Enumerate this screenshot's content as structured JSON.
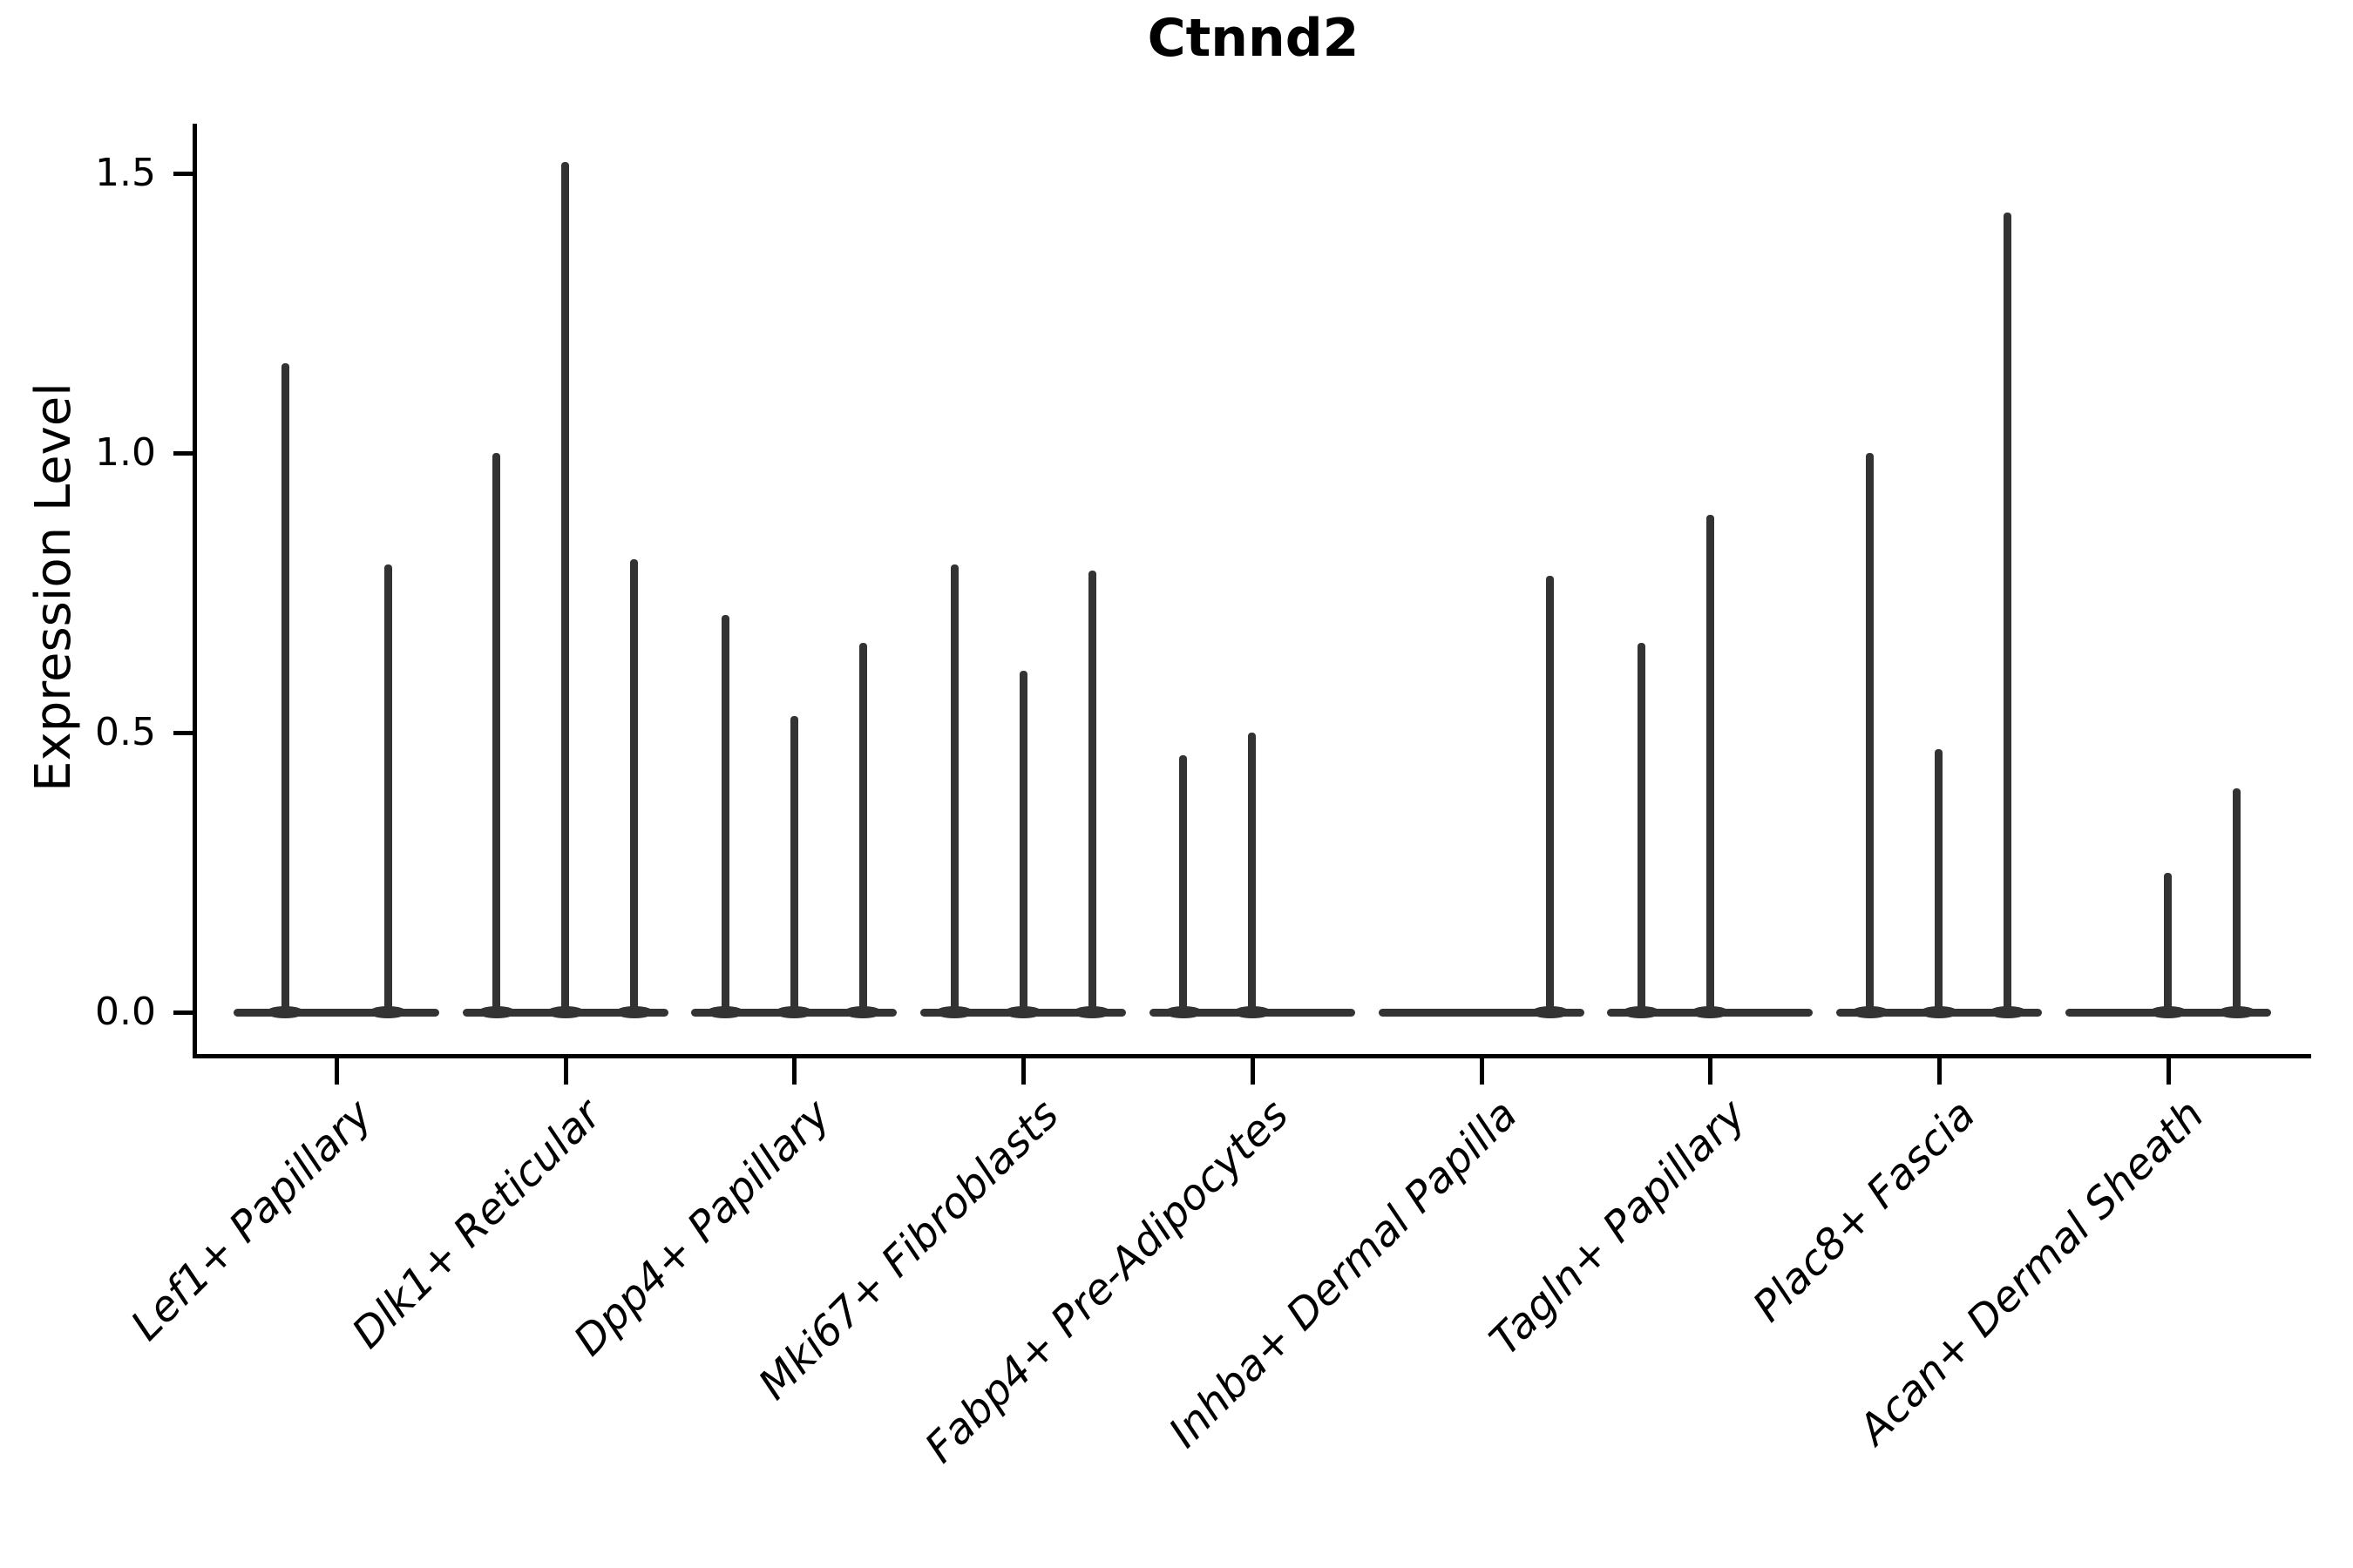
{
  "title": "Ctnnd2",
  "ylabel": "Expression Level",
  "chart_data": {
    "type": "violin",
    "title": "Ctnnd2",
    "xlabel": "",
    "ylabel": "Expression Level",
    "ylim": [
      -0.07,
      1.59
    ],
    "yticks": [
      0.0,
      0.5,
      1.0,
      1.5
    ],
    "ytick_labels": [
      "0.0",
      "0.5",
      "1.0",
      "1.5"
    ],
    "grid": "off",
    "legend": "none",
    "categories": [
      "Lef1+ Papillary",
      "Dlk1+ Reticular",
      "Dpp4+ Papillary",
      "Mki67+ Fibroblasts",
      "Fabp4+ Pre-Adipocytes",
      "Inhba+ Dermal Papilla",
      "Tagln+ Papillary",
      "Plac8+ Fascia",
      "Acan+ Dermal Sheath"
    ],
    "groups": [
      {
        "category": "Lef1+ Papillary",
        "violins": [
          {
            "offset": -59,
            "height": 1.16
          },
          {
            "offset": 59,
            "height": 0.8
          }
        ]
      },
      {
        "category": "Dlk1+ Reticular",
        "violins": [
          {
            "offset": -79,
            "height": 1.0
          },
          {
            "offset": 0,
            "height": 1.52
          },
          {
            "offset": 79,
            "height": 0.81
          }
        ]
      },
      {
        "category": "Dpp4+ Papillary",
        "violins": [
          {
            "offset": -79,
            "height": 0.71
          },
          {
            "offset": 0,
            "height": 0.53
          },
          {
            "offset": 79,
            "height": 0.66
          }
        ]
      },
      {
        "category": "Mki67+ Fibroblasts",
        "violins": [
          {
            "offset": -79,
            "height": 0.8
          },
          {
            "offset": 0,
            "height": 0.61
          },
          {
            "offset": 79,
            "height": 0.79
          }
        ]
      },
      {
        "category": "Fabp4+ Pre-Adipocytes",
        "violins": [
          {
            "offset": -79,
            "height": 0.46
          },
          {
            "offset": 0,
            "height": 0.5
          }
        ]
      },
      {
        "category": "Inhba+ Dermal Papilla",
        "violins": [
          {
            "offset": 79,
            "height": 0.78
          }
        ]
      },
      {
        "category": "Tagln+ Papillary",
        "violins": [
          {
            "offset": -79,
            "height": 0.66
          },
          {
            "offset": 0,
            "height": 0.89
          }
        ]
      },
      {
        "category": "Plac8+ Fascia",
        "violins": [
          {
            "offset": -79,
            "height": 1.0
          },
          {
            "offset": 0,
            "height": 0.47
          },
          {
            "offset": 79,
            "height": 1.43
          }
        ]
      },
      {
        "category": "Acan+ Dermal Sheath",
        "violins": [
          {
            "offset": 0,
            "height": 0.25
          },
          {
            "offset": 79,
            "height": 0.4
          }
        ]
      }
    ],
    "colors": {
      "violin": "#333333",
      "axis": "#000000",
      "background": "#ffffff"
    }
  }
}
